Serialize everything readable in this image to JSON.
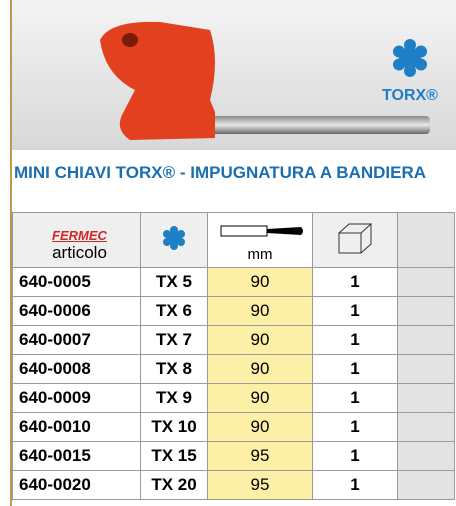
{
  "header": {
    "logo_label": "TORX®"
  },
  "title": "MINI CHIAVI TORX® - IMPUGNATURA A BANDIERA",
  "table": {
    "brand": "FERMEC",
    "columns": [
      "articolo",
      "mm"
    ],
    "rows": [
      [
        "640-0005",
        "TX 5",
        90,
        1
      ],
      [
        "640-0006",
        "TX 6",
        90,
        1
      ],
      [
        "640-0007",
        "TX 7",
        90,
        1
      ],
      [
        "640-0008",
        "TX 8",
        90,
        1
      ],
      [
        "640-0009",
        "TX 9",
        90,
        1
      ],
      [
        "640-0010",
        "TX 10",
        90,
        1
      ],
      [
        "640-0015",
        "TX 15",
        95,
        1
      ],
      [
        "640-0020",
        "TX 20",
        95,
        1
      ]
    ]
  }
}
